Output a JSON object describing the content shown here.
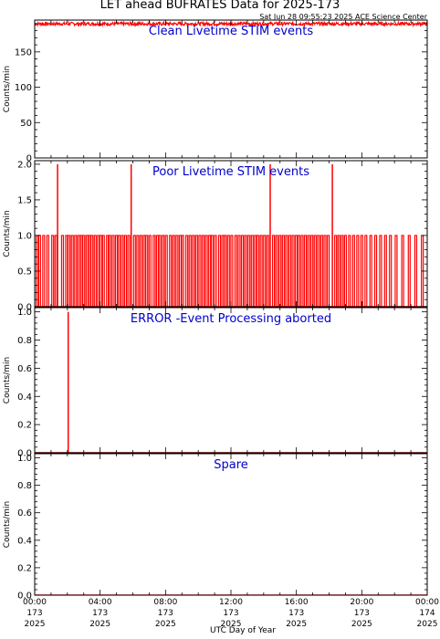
{
  "page": {
    "title": "LET ahead BUFRATES Data for 2025-173",
    "timestamp": "Sat Jun 28 09:55:23 2025 ACE Science Center",
    "xlabel": "UTC Day of Year"
  },
  "colors": {
    "trace": "#ff0000",
    "panel_label": "#0000cc",
    "axis": "#000000"
  },
  "x_ticks": [
    {
      "time": "00:00",
      "doy": "173",
      "year": "2025"
    },
    {
      "time": "04:00",
      "doy": "173",
      "year": "2025"
    },
    {
      "time": "08:00",
      "doy": "173",
      "year": "2025"
    },
    {
      "time": "12:00",
      "doy": "173",
      "year": "2025"
    },
    {
      "time": "16:00",
      "doy": "173",
      "year": "2025"
    },
    {
      "time": "20:00",
      "doy": "173",
      "year": "2025"
    },
    {
      "time": "00:00",
      "doy": "174",
      "year": "2025"
    }
  ],
  "chart_data": [
    {
      "type": "line",
      "title": "Clean Livetime STIM events",
      "ylabel": "Counts/min",
      "xlim": [
        0,
        24
      ],
      "x_unit": "hours UTC",
      "ylim": [
        0,
        195
      ],
      "y_ticks": [
        "0",
        "50",
        "100",
        "150"
      ],
      "y_tick_values": [
        0,
        50,
        100,
        150
      ],
      "series": [
        {
          "values_description_range": [
            186,
            192
          ],
          "baseline": 190
        }
      ]
    },
    {
      "type": "line",
      "title": "Poor Livetime STIM events",
      "ylabel": "Counts/min",
      "xlim": [
        0,
        24
      ],
      "x_unit": "hours UTC",
      "ylim": [
        0,
        2.05
      ],
      "y_ticks": [
        "0.0",
        "0.5",
        "1.0",
        "1.5",
        "2.0"
      ],
      "y_tick_values": [
        0,
        0.5,
        1.0,
        1.5,
        2.0
      ],
      "spikes_value_2_at_hours": [
        1.4,
        5.9,
        14.4,
        18.2
      ],
      "spikes_value_1_at_hours": [
        0.15,
        0.3,
        0.55,
        0.8,
        1.1,
        1.3,
        1.7,
        1.95,
        2.1,
        2.3,
        2.5,
        2.7,
        2.85,
        3.0,
        3.2,
        3.35,
        3.5,
        3.7,
        3.9,
        4.05,
        4.2,
        4.45,
        4.6,
        4.8,
        5.0,
        5.15,
        5.35,
        5.55,
        5.75,
        6.1,
        6.3,
        6.5,
        6.7,
        6.85,
        7.05,
        7.3,
        7.5,
        7.65,
        7.85,
        8.05,
        8.3,
        8.5,
        8.7,
        8.9,
        9.05,
        9.3,
        9.5,
        9.7,
        9.9,
        10.1,
        10.3,
        10.5,
        10.7,
        10.85,
        11.05,
        11.3,
        11.5,
        11.65,
        11.85,
        12.05,
        12.3,
        12.5,
        12.7,
        12.9,
        13.1,
        13.3,
        13.5,
        13.65,
        13.85,
        14.05,
        14.25,
        14.6,
        14.8,
        15.0,
        15.2,
        15.4,
        15.6,
        15.8,
        16.0,
        16.15,
        16.35,
        16.55,
        16.75,
        16.95,
        17.15,
        17.35,
        17.55,
        17.75,
        17.95,
        18.4,
        18.6,
        18.8,
        19.0,
        19.25,
        19.5,
        19.75,
        20.0,
        20.25,
        20.55,
        20.85,
        21.15,
        21.45,
        21.75,
        22.1,
        22.5,
        22.9,
        23.3,
        23.7
      ]
    },
    {
      "type": "line",
      "title": "ERROR -Event Processing aborted",
      "ylabel": "Counts/min",
      "xlim": [
        0,
        24
      ],
      "x_unit": "hours UTC",
      "ylim": [
        0,
        1.03
      ],
      "y_ticks": [
        "0.0",
        "0.2",
        "0.4",
        "0.6",
        "0.8",
        "1.0"
      ],
      "y_tick_values": [
        0,
        0.2,
        0.4,
        0.6,
        0.8,
        1.0
      ],
      "spikes_value_1_at_hours": [
        2.05
      ]
    },
    {
      "type": "line",
      "title": "Spare",
      "ylabel": "Counts/min",
      "xlim": [
        0,
        24
      ],
      "x_unit": "hours UTC",
      "ylim": [
        0,
        1.03
      ],
      "y_ticks": [
        "0.0",
        "0.2",
        "0.4",
        "0.6",
        "0.8",
        "1.0"
      ],
      "y_tick_values": [
        0,
        0.2,
        0.4,
        0.6,
        0.8,
        1.0
      ],
      "constant_value": 0
    }
  ]
}
